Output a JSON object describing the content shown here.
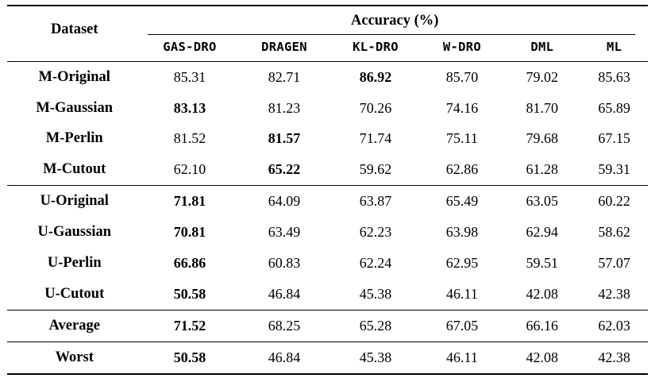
{
  "page": {
    "background": "#ffffff",
    "text_color": "#000000",
    "rule_color": "#000000"
  },
  "table": {
    "title_col_header": "Dataset",
    "group_header": "Accuracy (%)",
    "method_columns": [
      "GAS-DRO",
      "DRAGEN",
      "KL-DRO",
      "W-DRO",
      "DML",
      "ML"
    ],
    "row_groups": [
      {
        "name": "group-m",
        "rows": [
          {
            "label": "M-Original",
            "values": [
              "85.31",
              "82.71",
              "86.92",
              "85.70",
              "79.02",
              "85.63"
            ],
            "bold_value_index": 2
          },
          {
            "label": "M-Gaussian",
            "values": [
              "83.13",
              "81.23",
              "70.26",
              "74.16",
              "81.70",
              "65.89"
            ],
            "bold_value_index": 0
          },
          {
            "label": "M-Perlin",
            "values": [
              "81.52",
              "81.57",
              "71.74",
              "75.11",
              "79.68",
              "67.15"
            ],
            "bold_value_index": 1
          },
          {
            "label": "M-Cutout",
            "values": [
              "62.10",
              "65.22",
              "59.62",
              "62.86",
              "61.28",
              "59.31"
            ],
            "bold_value_index": 1
          }
        ]
      },
      {
        "name": "group-u",
        "rows": [
          {
            "label": "U-Original",
            "values": [
              "71.81",
              "64.09",
              "63.87",
              "65.49",
              "63.05",
              "60.22"
            ],
            "bold_value_index": 0
          },
          {
            "label": "U-Gaussian",
            "values": [
              "70.81",
              "63.49",
              "62.23",
              "63.98",
              "62.94",
              "58.62"
            ],
            "bold_value_index": 0
          },
          {
            "label": "U-Perlin",
            "values": [
              "66.86",
              "60.83",
              "62.24",
              "62.95",
              "59.51",
              "57.07"
            ],
            "bold_value_index": 0
          },
          {
            "label": "U-Cutout",
            "values": [
              "50.58",
              "46.84",
              "45.38",
              "46.11",
              "42.08",
              "42.38"
            ],
            "bold_value_index": 0
          }
        ]
      },
      {
        "name": "group-average",
        "rows": [
          {
            "label": "Average",
            "values": [
              "71.52",
              "68.25",
              "65.28",
              "67.05",
              "66.16",
              "62.03"
            ],
            "bold_value_index": 0
          }
        ]
      },
      {
        "name": "group-worst",
        "rows": [
          {
            "label": "Worst",
            "values": [
              "50.58",
              "46.84",
              "45.38",
              "46.11",
              "42.08",
              "42.38"
            ],
            "bold_value_index": 0
          }
        ]
      }
    ]
  }
}
